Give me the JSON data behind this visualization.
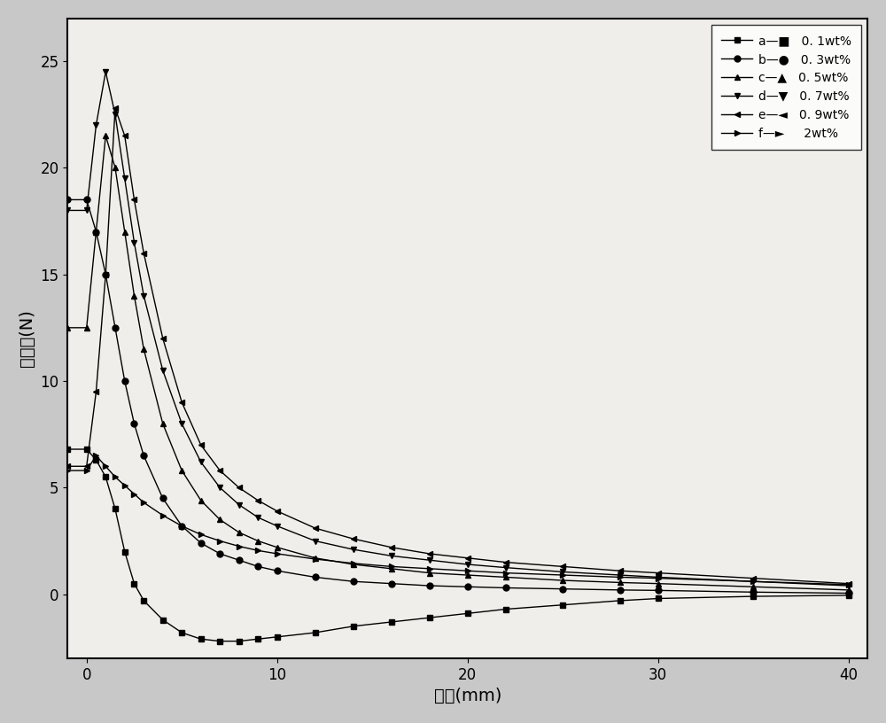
{
  "series": [
    {
      "label": "a",
      "legend_text": "0. 1wt%",
      "marker": "s",
      "x": [
        -1,
        0,
        0.5,
        1,
        1.5,
        2,
        2.5,
        3,
        4,
        5,
        6,
        7,
        8,
        9,
        10,
        12,
        14,
        16,
        18,
        20,
        22,
        25,
        28,
        30,
        35,
        40
      ],
      "y": [
        6.8,
        6.8,
        6.3,
        5.5,
        4.0,
        2.0,
        0.5,
        -0.3,
        -1.2,
        -1.8,
        -2.1,
        -2.2,
        -2.2,
        -2.1,
        -2.0,
        -1.8,
        -1.5,
        -1.3,
        -1.1,
        -0.9,
        -0.7,
        -0.5,
        -0.3,
        -0.2,
        -0.1,
        -0.05
      ]
    },
    {
      "label": "b",
      "legend_text": "0. 3wt%",
      "marker": "o",
      "x": [
        -1,
        0,
        0.5,
        1,
        1.5,
        2,
        2.5,
        3,
        4,
        5,
        6,
        7,
        8,
        9,
        10,
        12,
        14,
        16,
        18,
        20,
        22,
        25,
        28,
        30,
        35,
        40
      ],
      "y": [
        18.5,
        18.5,
        17.0,
        15.0,
        12.5,
        10.0,
        8.0,
        6.5,
        4.5,
        3.2,
        2.4,
        1.9,
        1.6,
        1.3,
        1.1,
        0.8,
        0.6,
        0.5,
        0.4,
        0.35,
        0.3,
        0.25,
        0.2,
        0.18,
        0.1,
        0.05
      ]
    },
    {
      "label": "c",
      "legend_text": "0. 5wt%",
      "marker": "^",
      "x": [
        -1,
        0,
        0.5,
        1,
        1.5,
        2,
        2.5,
        3,
        4,
        5,
        6,
        7,
        8,
        9,
        10,
        12,
        14,
        16,
        18,
        20,
        22,
        25,
        28,
        30,
        35,
        40
      ],
      "y": [
        12.5,
        12.5,
        17.0,
        21.5,
        20.0,
        17.0,
        14.0,
        11.5,
        8.0,
        5.8,
        4.4,
        3.5,
        2.9,
        2.5,
        2.2,
        1.7,
        1.4,
        1.2,
        1.0,
        0.9,
        0.8,
        0.65,
        0.55,
        0.5,
        0.35,
        0.2
      ]
    },
    {
      "label": "d",
      "legend_text": "0. 7wt%",
      "marker": "v",
      "x": [
        -1,
        0,
        0.5,
        1,
        1.5,
        2,
        2.5,
        3,
        4,
        5,
        6,
        7,
        8,
        9,
        10,
        12,
        14,
        16,
        18,
        20,
        22,
        25,
        28,
        30,
        35,
        40
      ],
      "y": [
        18.0,
        18.0,
        22.0,
        24.5,
        22.5,
        19.5,
        16.5,
        14.0,
        10.5,
        8.0,
        6.2,
        5.0,
        4.2,
        3.6,
        3.2,
        2.5,
        2.1,
        1.8,
        1.6,
        1.4,
        1.25,
        1.05,
        0.9,
        0.8,
        0.6,
        0.4
      ]
    },
    {
      "label": "e",
      "legend_text": "0. 9wt%",
      "marker": "<",
      "x": [
        -1,
        0,
        0.5,
        1,
        1.5,
        2,
        2.5,
        3,
        4,
        5,
        6,
        7,
        8,
        9,
        10,
        12,
        14,
        16,
        18,
        20,
        22,
        25,
        28,
        30,
        35,
        40
      ],
      "y": [
        6.0,
        6.0,
        9.5,
        15.0,
        22.8,
        21.5,
        18.5,
        16.0,
        12.0,
        9.0,
        7.0,
        5.8,
        5.0,
        4.4,
        3.9,
        3.1,
        2.6,
        2.2,
        1.9,
        1.7,
        1.5,
        1.3,
        1.1,
        1.0,
        0.75,
        0.5
      ]
    },
    {
      "label": "f",
      "legend_text": "  2wt%",
      "marker": ">",
      "x": [
        -1,
        0,
        0.5,
        1,
        1.5,
        2,
        2.5,
        3,
        4,
        5,
        6,
        7,
        8,
        9,
        10,
        12,
        14,
        16,
        18,
        20,
        22,
        25,
        28,
        30,
        35,
        40
      ],
      "y": [
        5.8,
        5.8,
        6.5,
        6.0,
        5.5,
        5.1,
        4.7,
        4.3,
        3.7,
        3.2,
        2.8,
        2.5,
        2.25,
        2.05,
        1.9,
        1.65,
        1.45,
        1.3,
        1.2,
        1.1,
        1.0,
        0.9,
        0.8,
        0.75,
        0.6,
        0.45
      ]
    }
  ],
  "xlabel": "距离(mm)",
  "ylabel": "磁浮力(N)",
  "xlim": [
    -1,
    41
  ],
  "ylim": [
    -3,
    27
  ],
  "xticks": [
    0,
    10,
    20,
    30,
    40
  ],
  "yticks": [
    0,
    5,
    10,
    15,
    20,
    25
  ],
  "fig_facecolor": "#c8c8c8",
  "ax_facecolor": "#f0eeea"
}
